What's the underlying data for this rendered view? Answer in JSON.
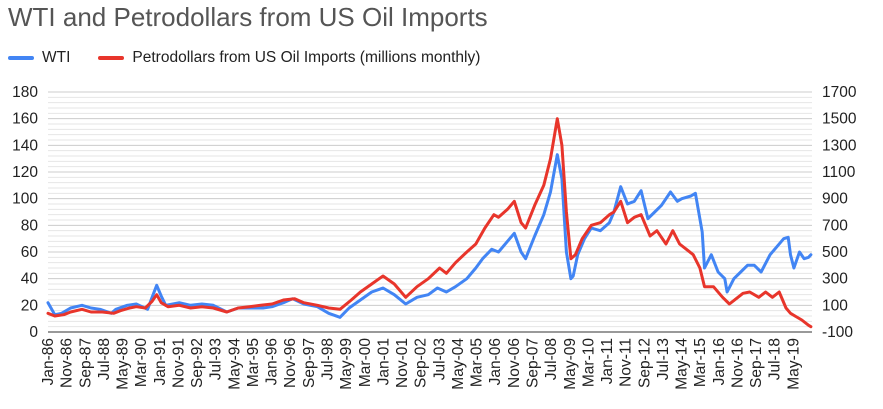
{
  "chart_data": {
    "type": "line",
    "title": "WTI and Petrodollars from US Oil Imports",
    "xlabel": "",
    "ylabel": "",
    "legend_position": "top-left",
    "grid": true,
    "categories": [
      "Jan-86",
      "Nov-86",
      "Sep-87",
      "Jul-88",
      "May-89",
      "Mar-90",
      "Jan-91",
      "Nov-91",
      "Sep-92",
      "Jul-93",
      "May-94",
      "Mar-95",
      "Jan-96",
      "Nov-96",
      "Sep-97",
      "Jul-98",
      "May-99",
      "Mar-00",
      "Jan-01",
      "Nov-01",
      "Sep-02",
      "Jul-03",
      "May-04",
      "Mar-05",
      "Jan-06",
      "Nov-06",
      "Sep-07",
      "Jul-08",
      "May-09",
      "Mar-10",
      "Jan-11",
      "Nov-11",
      "Sep-12",
      "Jul-13",
      "May-14",
      "Mar-15",
      "Jan-16",
      "Nov-16",
      "Sep-17",
      "Jul-18",
      "May-19"
    ],
    "y_left": {
      "min": 0,
      "max": 180,
      "ticks": [
        "0",
        "20",
        "40",
        "60",
        "80",
        "100",
        "120",
        "140",
        "160",
        "180"
      ]
    },
    "y_right": {
      "min": -100,
      "max": 1700,
      "ticks": [
        "-100",
        "100",
        "300",
        "500",
        "700",
        "900",
        "1100",
        "1300",
        "1500",
        "1700"
      ]
    },
    "series": [
      {
        "name": "WTI",
        "axis": "left",
        "color": "#4285f4",
        "points": [
          [
            1986.0,
            22
          ],
          [
            1986.3,
            13
          ],
          [
            1986.6,
            14
          ],
          [
            1987.0,
            18
          ],
          [
            1987.5,
            20
          ],
          [
            1987.9,
            18
          ],
          [
            1988.3,
            17
          ],
          [
            1988.8,
            14
          ],
          [
            1989.0,
            17
          ],
          [
            1989.5,
            20
          ],
          [
            1989.9,
            21
          ],
          [
            1990.4,
            17
          ],
          [
            1990.6,
            26
          ],
          [
            1990.8,
            35
          ],
          [
            1991.0,
            27
          ],
          [
            1991.2,
            20
          ],
          [
            1991.8,
            22
          ],
          [
            1992.3,
            20
          ],
          [
            1992.8,
            21
          ],
          [
            1993.3,
            20
          ],
          [
            1993.9,
            15
          ],
          [
            1994.4,
            18
          ],
          [
            1994.9,
            18
          ],
          [
            1995.5,
            18
          ],
          [
            1995.9,
            19
          ],
          [
            1996.4,
            22
          ],
          [
            1996.8,
            25
          ],
          [
            1997.3,
            21
          ],
          [
            1997.9,
            19
          ],
          [
            1998.4,
            14
          ],
          [
            1998.9,
            11
          ],
          [
            1999.3,
            18
          ],
          [
            1999.8,
            24
          ],
          [
            2000.3,
            30
          ],
          [
            2000.8,
            33
          ],
          [
            2001.3,
            28
          ],
          [
            2001.8,
            21
          ],
          [
            2002.3,
            26
          ],
          [
            2002.8,
            28
          ],
          [
            2003.2,
            33
          ],
          [
            2003.6,
            30
          ],
          [
            2004.0,
            34
          ],
          [
            2004.5,
            40
          ],
          [
            2004.9,
            48
          ],
          [
            2005.2,
            55
          ],
          [
            2005.6,
            62
          ],
          [
            2005.9,
            60
          ],
          [
            2006.3,
            68
          ],
          [
            2006.6,
            74
          ],
          [
            2006.9,
            60
          ],
          [
            2007.1,
            55
          ],
          [
            2007.5,
            72
          ],
          [
            2007.9,
            88
          ],
          [
            2008.2,
            105
          ],
          [
            2008.5,
            133
          ],
          [
            2008.7,
            115
          ],
          [
            2008.9,
            60
          ],
          [
            2009.1,
            40
          ],
          [
            2009.2,
            42
          ],
          [
            2009.4,
            58
          ],
          [
            2009.7,
            70
          ],
          [
            2010.0,
            78
          ],
          [
            2010.4,
            76
          ],
          [
            2010.8,
            82
          ],
          [
            2011.0,
            90
          ],
          [
            2011.3,
            109
          ],
          [
            2011.6,
            96
          ],
          [
            2011.9,
            98
          ],
          [
            2012.2,
            106
          ],
          [
            2012.5,
            85
          ],
          [
            2012.8,
            90
          ],
          [
            2013.1,
            95
          ],
          [
            2013.5,
            105
          ],
          [
            2013.8,
            98
          ],
          [
            2014.0,
            100
          ],
          [
            2014.4,
            102
          ],
          [
            2014.6,
            104
          ],
          [
            2014.9,
            75
          ],
          [
            2015.0,
            48
          ],
          [
            2015.3,
            58
          ],
          [
            2015.6,
            45
          ],
          [
            2015.9,
            40
          ],
          [
            2016.0,
            30
          ],
          [
            2016.3,
            40
          ],
          [
            2016.6,
            45
          ],
          [
            2016.9,
            50
          ],
          [
            2017.2,
            50
          ],
          [
            2017.5,
            45
          ],
          [
            2017.9,
            58
          ],
          [
            2018.2,
            64
          ],
          [
            2018.5,
            70
          ],
          [
            2018.7,
            71
          ],
          [
            2018.8,
            58
          ],
          [
            2018.95,
            48
          ],
          [
            2019.2,
            60
          ],
          [
            2019.4,
            55
          ],
          [
            2019.6,
            56
          ],
          [
            2019.7,
            58
          ]
        ]
      },
      {
        "name": "Petrodollars from US Oil Imports (millions monthly)",
        "axis": "right",
        "color": "#e8352b",
        "points": [
          [
            1986.0,
            40
          ],
          [
            1986.3,
            20
          ],
          [
            1986.7,
            30
          ],
          [
            1987.0,
            50
          ],
          [
            1987.5,
            70
          ],
          [
            1987.9,
            50
          ],
          [
            1988.4,
            50
          ],
          [
            1988.9,
            40
          ],
          [
            1989.2,
            60
          ],
          [
            1989.6,
            80
          ],
          [
            1989.9,
            90
          ],
          [
            1990.3,
            80
          ],
          [
            1990.6,
            130
          ],
          [
            1990.8,
            180
          ],
          [
            1991.0,
            120
          ],
          [
            1991.3,
            90
          ],
          [
            1991.8,
            100
          ],
          [
            1992.3,
            80
          ],
          [
            1992.8,
            90
          ],
          [
            1993.3,
            80
          ],
          [
            1993.9,
            50
          ],
          [
            1994.4,
            80
          ],
          [
            1994.9,
            90
          ],
          [
            1995.4,
            100
          ],
          [
            1995.9,
            110
          ],
          [
            1996.4,
            140
          ],
          [
            1996.9,
            150
          ],
          [
            1997.3,
            120
          ],
          [
            1997.9,
            100
          ],
          [
            1998.4,
            80
          ],
          [
            1998.9,
            70
          ],
          [
            1999.4,
            140
          ],
          [
            1999.8,
            200
          ],
          [
            2000.3,
            260
          ],
          [
            2000.8,
            320
          ],
          [
            2001.3,
            260
          ],
          [
            2001.8,
            160
          ],
          [
            2002.3,
            240
          ],
          [
            2002.8,
            300
          ],
          [
            2003.3,
            380
          ],
          [
            2003.6,
            340
          ],
          [
            2004.0,
            420
          ],
          [
            2004.5,
            500
          ],
          [
            2004.9,
            560
          ],
          [
            2005.3,
            680
          ],
          [
            2005.7,
            780
          ],
          [
            2005.9,
            760
          ],
          [
            2006.3,
            820
          ],
          [
            2006.6,
            880
          ],
          [
            2006.9,
            720
          ],
          [
            2007.1,
            680
          ],
          [
            2007.5,
            850
          ],
          [
            2007.9,
            1000
          ],
          [
            2008.2,
            1200
          ],
          [
            2008.5,
            1500
          ],
          [
            2008.7,
            1300
          ],
          [
            2008.9,
            800
          ],
          [
            2009.1,
            450
          ],
          [
            2009.3,
            480
          ],
          [
            2009.6,
            600
          ],
          [
            2010.0,
            700
          ],
          [
            2010.4,
            720
          ],
          [
            2010.8,
            780
          ],
          [
            2011.0,
            800
          ],
          [
            2011.3,
            880
          ],
          [
            2011.6,
            720
          ],
          [
            2011.9,
            760
          ],
          [
            2012.2,
            780
          ],
          [
            2012.6,
            620
          ],
          [
            2012.9,
            660
          ],
          [
            2013.3,
            560
          ],
          [
            2013.6,
            660
          ],
          [
            2013.9,
            560
          ],
          [
            2014.2,
            520
          ],
          [
            2014.5,
            480
          ],
          [
            2014.8,
            380
          ],
          [
            2015.0,
            240
          ],
          [
            2015.4,
            240
          ],
          [
            2015.8,
            160
          ],
          [
            2016.1,
            110
          ],
          [
            2016.4,
            150
          ],
          [
            2016.7,
            190
          ],
          [
            2017.0,
            200
          ],
          [
            2017.4,
            160
          ],
          [
            2017.7,
            200
          ],
          [
            2018.0,
            160
          ],
          [
            2018.3,
            200
          ],
          [
            2018.6,
            80
          ],
          [
            2018.8,
            40
          ],
          [
            2019.0,
            20
          ],
          [
            2019.3,
            -10
          ],
          [
            2019.6,
            -50
          ],
          [
            2019.7,
            -60
          ]
        ]
      }
    ]
  }
}
